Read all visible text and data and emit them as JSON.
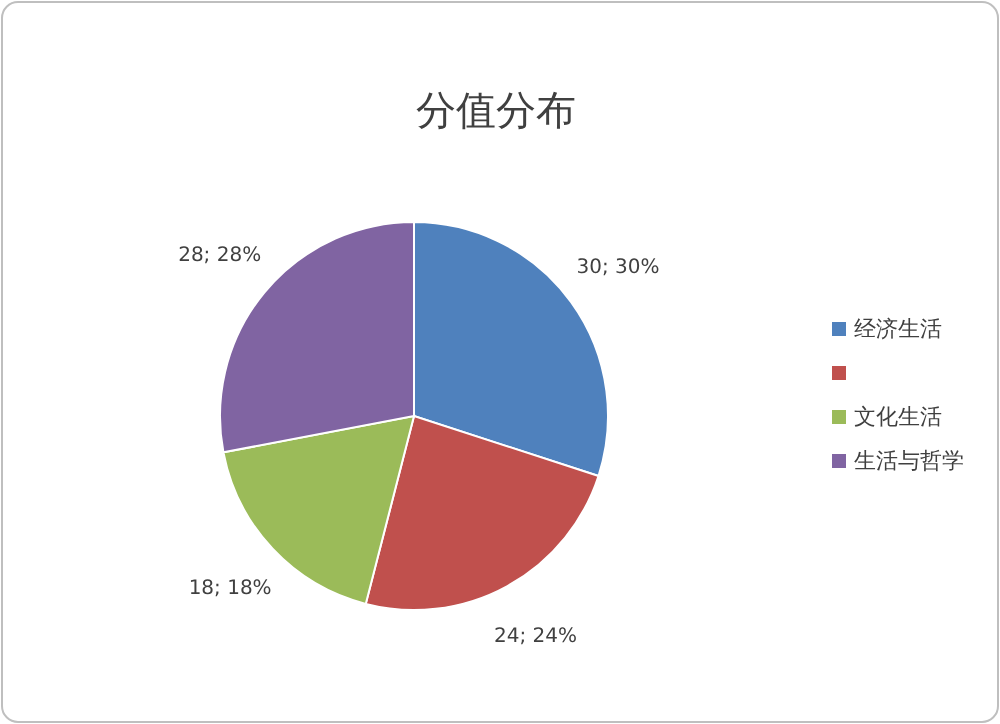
{
  "chart_data": {
    "type": "pie",
    "title": "分值分布",
    "categories": [
      "经济生活",
      null,
      "文化生活",
      "生活与哲学"
    ],
    "values": [
      30,
      24,
      18,
      28
    ],
    "colors": [
      "#4f81bd",
      "#c0504d",
      "#9bbb59",
      "#8064a2"
    ],
    "value_labels": [
      "30; 30%",
      "24; 24%",
      "18; 18%",
      "28; 28%"
    ],
    "legend": "right"
  }
}
